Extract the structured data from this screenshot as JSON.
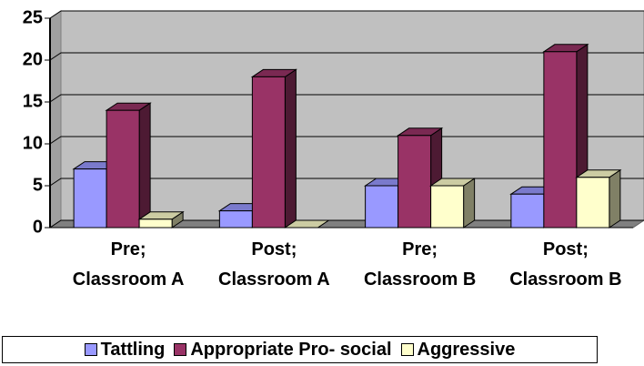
{
  "chart_data": {
    "type": "bar3d",
    "categories": [
      "Pre;\nClassroom A",
      "Post;\nClassroom A",
      "Pre;\nClassroom B",
      "Post;\nClassroom B"
    ],
    "series": [
      {
        "name": "Tattling",
        "color": "#9999ff",
        "values": [
          7,
          2,
          5,
          4
        ]
      },
      {
        "name": "Appropriate Pro- social",
        "color": "#993366",
        "values": [
          14,
          18,
          11,
          21
        ]
      },
      {
        "name": "Aggressive",
        "color": "#ffffcc",
        "values": [
          1,
          0,
          5,
          6
        ]
      }
    ],
    "ylim": [
      0,
      25
    ],
    "yticks": [
      0,
      5,
      10,
      15,
      20,
      25
    ],
    "grid": true,
    "legend": "bottom"
  }
}
